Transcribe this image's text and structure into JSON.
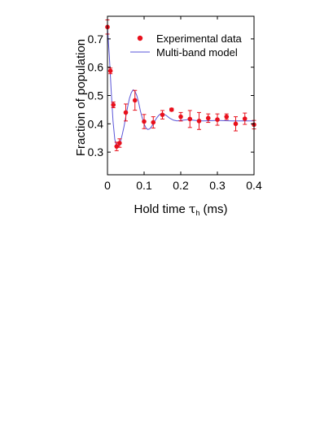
{
  "chart_data": {
    "type": "scatter",
    "xlabel_main": "Hold time ",
    "xlabel_tau": "τ",
    "xlabel_sub": "h",
    "xlabel_unit": " (ms)",
    "ylabel": "Fraction of population",
    "xlim": [
      0,
      0.4
    ],
    "ylim": [
      0.22,
      0.78
    ],
    "x_ticks": [
      "0",
      "0.1",
      "0.2",
      "0.3",
      "0.4"
    ],
    "x_tick_values": [
      0,
      0.1,
      0.2,
      0.3,
      0.4
    ],
    "y_ticks": [
      "0.3",
      "0.4",
      "0.5",
      "0.6",
      "0.7"
    ],
    "y_tick_values": [
      0.3,
      0.4,
      0.5,
      0.6,
      0.7
    ],
    "grid": false,
    "legend_position": "top-right",
    "legend": {
      "experimental": "Experimental data",
      "model": "Multi-band model"
    },
    "colors": {
      "data": "#e8101c",
      "model": "#5a55d8",
      "axis": "#000000"
    },
    "series": [
      {
        "name": "Experimental data",
        "x": [
          0.0,
          0.008,
          0.016,
          0.025,
          0.033,
          0.05,
          0.075,
          0.1,
          0.125,
          0.15,
          0.175,
          0.2,
          0.225,
          0.25,
          0.275,
          0.3,
          0.325,
          0.35,
          0.375,
          0.4
        ],
        "y": [
          0.742,
          0.587,
          0.467,
          0.32,
          0.332,
          0.44,
          0.483,
          0.408,
          0.405,
          0.432,
          0.45,
          0.425,
          0.417,
          0.41,
          0.42,
          0.415,
          0.425,
          0.4,
          0.418,
          0.397
        ],
        "err": [
          0.025,
          0.01,
          0.01,
          0.015,
          0.015,
          0.03,
          0.035,
          0.025,
          0.02,
          0.015,
          0.005,
          0.015,
          0.03,
          0.03,
          0.015,
          0.02,
          0.01,
          0.025,
          0.02,
          0.015
        ]
      },
      {
        "name": "Multi-band model",
        "type": "line",
        "x": [
          0.0,
          0.005,
          0.01,
          0.015,
          0.02,
          0.025,
          0.03,
          0.035,
          0.04,
          0.045,
          0.05,
          0.055,
          0.06,
          0.065,
          0.07,
          0.075,
          0.08,
          0.085,
          0.09,
          0.095,
          0.1,
          0.105,
          0.11,
          0.115,
          0.12,
          0.125,
          0.13,
          0.135,
          0.14,
          0.145,
          0.15,
          0.16,
          0.17,
          0.18,
          0.19,
          0.2,
          0.22,
          0.24,
          0.26,
          0.28,
          0.3,
          0.32,
          0.34,
          0.36,
          0.38,
          0.4
        ],
        "y": [
          0.74,
          0.64,
          0.52,
          0.41,
          0.345,
          0.32,
          0.32,
          0.335,
          0.36,
          0.39,
          0.425,
          0.46,
          0.49,
          0.51,
          0.52,
          0.515,
          0.5,
          0.475,
          0.445,
          0.42,
          0.4,
          0.385,
          0.38,
          0.382,
          0.39,
          0.4,
          0.412,
          0.422,
          0.43,
          0.435,
          0.436,
          0.43,
          0.42,
          0.413,
          0.41,
          0.412,
          0.415,
          0.412,
          0.41,
          0.411,
          0.412,
          0.411,
          0.41,
          0.41,
          0.41,
          0.41
        ]
      }
    ]
  }
}
